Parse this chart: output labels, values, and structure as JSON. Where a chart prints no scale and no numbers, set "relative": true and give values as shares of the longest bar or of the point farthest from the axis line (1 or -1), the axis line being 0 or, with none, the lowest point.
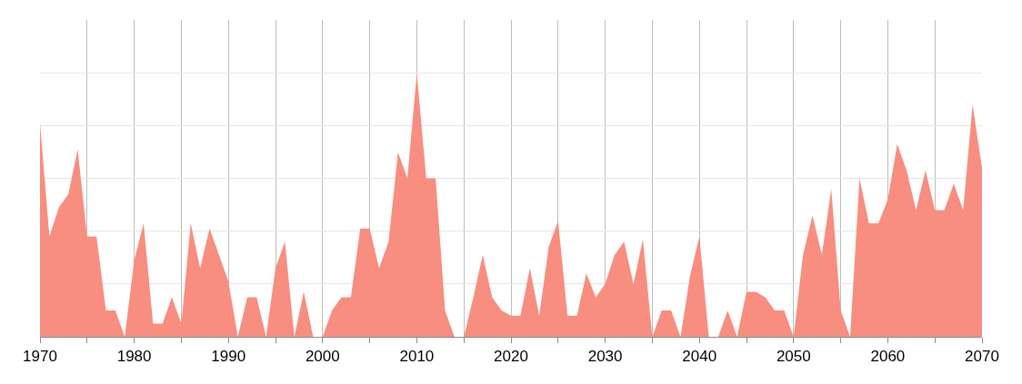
{
  "chart_data": {
    "type": "area",
    "relative": true,
    "color": "#f78e80",
    "grid": true,
    "x": [
      1970,
      1971,
      1972,
      1973,
      1974,
      1975,
      1976,
      1977,
      1978,
      1979,
      1980,
      1981,
      1982,
      1983,
      1984,
      1985,
      1986,
      1987,
      1988,
      1989,
      1990,
      1991,
      1992,
      1993,
      1994,
      1995,
      1996,
      1997,
      1998,
      1999,
      2000,
      2001,
      2002,
      2003,
      2004,
      2005,
      2006,
      2007,
      2008,
      2009,
      2010,
      2011,
      2012,
      2013,
      2014,
      2015,
      2016,
      2017,
      2018,
      2019,
      2020,
      2021,
      2022,
      2023,
      2024,
      2025,
      2026,
      2027,
      2028,
      2029,
      2030,
      2031,
      2032,
      2033,
      2034,
      2035,
      2036,
      2037,
      2038,
      2039,
      2040,
      2041,
      2042,
      2043,
      2044,
      2045,
      2046,
      2047,
      2048,
      2049,
      2050,
      2051,
      2052,
      2053,
      2054,
      2055,
      2056,
      2057,
      2058,
      2059,
      2060,
      2061,
      2062,
      2063,
      2064,
      2065,
      2066,
      2067,
      2068,
      2069,
      2070
    ],
    "values": [
      0.81,
      0.38,
      0.49,
      0.54,
      0.71,
      0.38,
      0.38,
      0.1,
      0.1,
      0,
      0.29,
      0.43,
      0.05,
      0.05,
      0.15,
      0.05,
      0.43,
      0.26,
      0.41,
      0.31,
      0.21,
      0,
      0.15,
      0.15,
      0,
      0.26,
      0.36,
      0,
      0.17,
      0,
      0,
      0.1,
      0.15,
      0.15,
      0.41,
      0.41,
      0.26,
      0.36,
      0.7,
      0.6,
      1,
      0.6,
      0.6,
      0.1,
      0,
      0,
      0.15,
      0.31,
      0.15,
      0.1,
      0.08,
      0.08,
      0.26,
      0.08,
      0.34,
      0.44,
      0.08,
      0.08,
      0.24,
      0.15,
      0.2,
      0.31,
      0.36,
      0.2,
      0.37,
      0,
      0.1,
      0.1,
      0,
      0.23,
      0.38,
      0,
      0,
      0.1,
      0,
      0.17,
      0.17,
      0.15,
      0.1,
      0.1,
      0,
      0.31,
      0.46,
      0.31,
      0.56,
      0.1,
      0,
      0.6,
      0.43,
      0.43,
      0.52,
      0.73,
      0.63,
      0.48,
      0.63,
      0.48,
      0.48,
      0.58,
      0.48,
      0.88,
      0.64
    ],
    "xlim": [
      1970,
      2070
    ],
    "xticks": [
      1970,
      {
        "value": 1975,
        "label": null
      },
      1980,
      {
        "value": 1985,
        "label": null
      },
      1990,
      {
        "value": 1995,
        "label": null
      },
      2000,
      {
        "value": 2005,
        "label": null
      },
      2010,
      {
        "value": 2015,
        "label": null
      },
      2020,
      {
        "value": 2025,
        "label": null
      },
      2030,
      {
        "value": 2035,
        "label": null
      },
      2040,
      {
        "value": 2045,
        "label": null
      },
      2050,
      {
        "value": 2055,
        "label": null
      },
      2060,
      {
        "value": 2065,
        "label": null
      },
      2070
    ]
  }
}
